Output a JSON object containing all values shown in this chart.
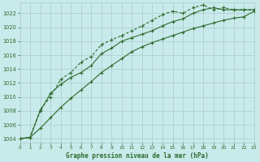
{
  "title": "Graphe pression niveau de la mer (hPa)",
  "bg_color": "#c8eaea",
  "grid_color": "#b0d0d0",
  "line_color": "#2d6a2d",
  "xlim": [
    0,
    23
  ],
  "ylim": [
    1003.5,
    1023.5
  ],
  "yticks": [
    1004,
    1006,
    1008,
    1010,
    1012,
    1014,
    1016,
    1018,
    1020,
    1022
  ],
  "xticks": [
    0,
    1,
    2,
    3,
    4,
    5,
    6,
    7,
    8,
    9,
    10,
    11,
    12,
    13,
    14,
    15,
    16,
    17,
    18,
    19,
    20,
    21,
    22,
    23
  ],
  "series1": {
    "x": [
      0,
      1,
      2,
      3,
      4,
      5,
      6,
      7,
      8,
      9,
      10,
      11,
      12,
      13,
      14,
      15,
      16,
      17,
      18,
      19,
      20,
      21,
      22,
      23
    ],
    "y": [
      1004.0,
      1004.2,
      1005.5,
      1007.0,
      1008.5,
      1009.8,
      1011.0,
      1012.2,
      1013.5,
      1014.5,
      1015.5,
      1016.5,
      1017.2,
      1017.8,
      1018.3,
      1018.8,
      1019.3,
      1019.8,
      1020.2,
      1020.6,
      1021.0,
      1021.3,
      1021.5,
      1022.3
    ]
  },
  "series2": {
    "x": [
      0,
      1,
      2,
      3,
      4,
      5,
      6,
      7,
      8,
      9,
      10,
      11,
      12,
      13,
      14,
      15,
      16,
      17,
      18,
      19,
      20,
      21,
      22,
      23
    ],
    "y": [
      1004.0,
      1004.2,
      1008.0,
      1010.5,
      1011.8,
      1012.8,
      1013.5,
      1014.5,
      1016.2,
      1017.0,
      1018.0,
      1018.5,
      1019.0,
      1019.5,
      1020.2,
      1020.8,
      1021.2,
      1022.0,
      1022.5,
      1022.8,
      1022.5,
      1022.5,
      1022.5,
      1022.5
    ]
  },
  "series3": {
    "x": [
      0,
      1,
      2,
      3,
      4,
      5,
      6,
      7,
      8,
      9,
      10,
      11,
      12,
      13,
      14,
      15,
      16,
      17,
      18,
      19,
      20,
      21,
      22,
      23
    ],
    "y": [
      1004.0,
      1004.2,
      1008.2,
      1010.0,
      1012.5,
      1013.5,
      1015.0,
      1015.8,
      1017.5,
      1018.2,
      1018.8,
      1019.5,
      1020.2,
      1021.0,
      1021.8,
      1022.3,
      1022.0,
      1022.8,
      1023.2,
      1022.5,
      1022.8,
      1022.5,
      1022.5,
      1022.5
    ]
  }
}
